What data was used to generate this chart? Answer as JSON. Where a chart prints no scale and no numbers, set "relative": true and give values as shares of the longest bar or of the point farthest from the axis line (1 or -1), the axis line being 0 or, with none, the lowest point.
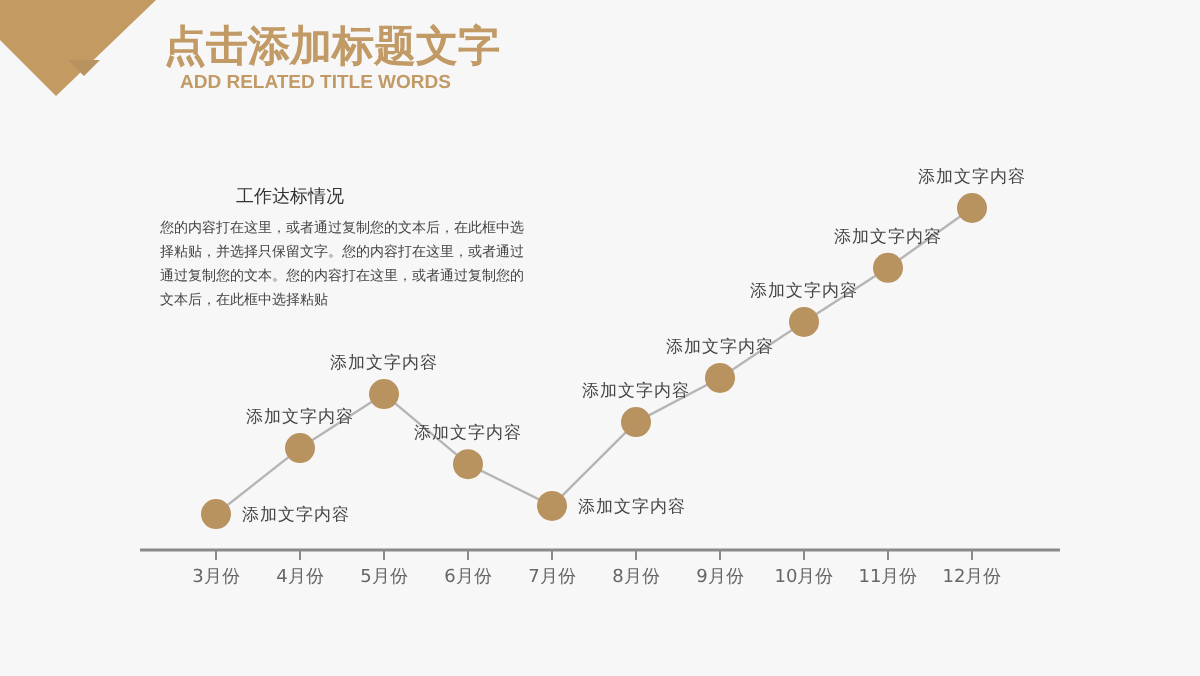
{
  "chart_data": {
    "type": "line",
    "title": "点击添加标题文字",
    "subtitle": "ADD RELATED TITLE WORDS",
    "categories": [
      "3月份",
      "4月份",
      "5月份",
      "6月份",
      "7月份",
      "8月份",
      "9月份",
      "10月份",
      "11月份",
      "12月份"
    ],
    "relative": true,
    "series": [
      {
        "color": "#b8925f",
        "values": [
          0.105,
          0.298,
          0.456,
          0.251,
          0.129,
          0.374,
          0.503,
          0.667,
          0.825,
          1
        ]
      }
    ],
    "marker": "circle",
    "line_style": "solid",
    "annotations": [
      "工作达标情况",
      "您的内容打在这里，或者通过复制您的文本后，在此框中选择粘贴，并选择只保留文字。您的内容打在这里，或者通过通过复制您的文本。您的内容打在这里，或者通过复制您的文本后，在此框中选择粘贴",
      {
        "text": "添加文字内容",
        "x": "3月份",
        "y": 0.105
      },
      {
        "text": "添加文字内容",
        "x": "4月份",
        "y": 0.298
      },
      {
        "text": "添加文字内容",
        "x": "5月份",
        "y": 0.456
      },
      {
        "text": "添加文字内容",
        "x": "6月份",
        "y": 0.251
      },
      {
        "text": "添加文字内容",
        "x": "7月份",
        "y": 0.129
      },
      {
        "text": "添加文字内容",
        "x": "8月份",
        "y": 0.374
      },
      {
        "text": "添加文字内容",
        "x": "9月份",
        "y": 0.503
      },
      {
        "text": "添加文字内容",
        "x": "10月份",
        "y": 0.667
      },
      {
        "text": "添加文字内容",
        "x": "11月份",
        "y": 0.825
      },
      {
        "text": "添加文字内容",
        "x": "12月份",
        "y": 1
      }
    ]
  }
}
